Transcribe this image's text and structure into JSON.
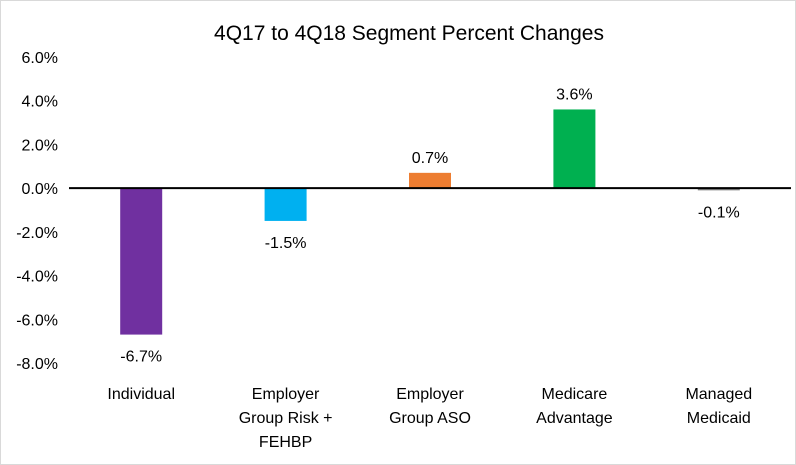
{
  "chart_data": {
    "type": "bar",
    "title": "4Q17 to 4Q18 Segment Percent Changes",
    "xlabel": "",
    "ylabel": "",
    "ylim": [
      -8,
      6
    ],
    "yticks": [
      "6.0%",
      "4.0%",
      "2.0%",
      "0.0%",
      "-2.0%",
      "-4.0%",
      "-6.0%",
      "-8.0%"
    ],
    "ytick_values": [
      6,
      4,
      2,
      0,
      -2,
      -4,
      -6,
      -8
    ],
    "grid": false,
    "legend": "none",
    "categories": [
      "Individual",
      "Employer Group Risk + FEHBP",
      "Employer Group ASO",
      "Medicare Advantage",
      "Managed Medicaid"
    ],
    "category_lines": [
      [
        "Individual"
      ],
      [
        "Employer",
        "Group Risk +",
        "FEHBP"
      ],
      [
        "Employer",
        "Group ASO"
      ],
      [
        "Medicare",
        "Advantage"
      ],
      [
        "Managed",
        "Medicaid"
      ]
    ],
    "values": [
      -6.7,
      -1.5,
      0.7,
      3.6,
      -0.1
    ],
    "data_labels": [
      "-6.7%",
      "-1.5%",
      "0.7%",
      "3.6%",
      "-0.1%"
    ],
    "colors": [
      "#7030a0",
      "#00b0f0",
      "#ed7d31",
      "#00b050",
      "#7f7f7f"
    ],
    "axis_color": "#000000"
  }
}
